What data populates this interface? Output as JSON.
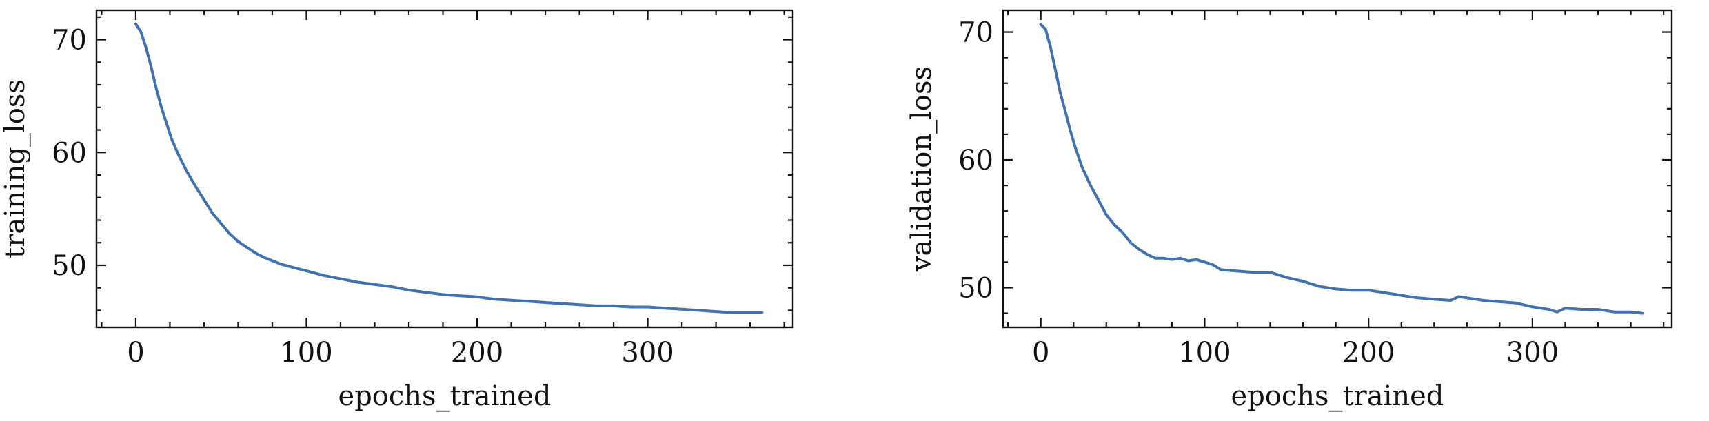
{
  "chart_data": [
    {
      "type": "line",
      "xlabel": "epochs_trained",
      "ylabel": "training_loss",
      "xlim": [
        -23,
        385
      ],
      "ylim": [
        44.5,
        72.6
      ],
      "xticks": [
        0,
        100,
        200,
        300
      ],
      "yticks": [
        50,
        60,
        70
      ],
      "xminor": 20,
      "yminor": 2,
      "grid": false,
      "series": [
        {
          "color": "#3f72af",
          "x": [
            0,
            3,
            6,
            9,
            12,
            15,
            18,
            21,
            25,
            30,
            35,
            40,
            45,
            50,
            55,
            60,
            65,
            70,
            75,
            80,
            85,
            90,
            95,
            100,
            110,
            120,
            130,
            140,
            150,
            160,
            170,
            180,
            190,
            200,
            210,
            220,
            230,
            240,
            250,
            260,
            270,
            280,
            290,
            300,
            310,
            320,
            330,
            340,
            350,
            360,
            367
          ],
          "y": [
            71.4,
            70.7,
            69.3,
            67.6,
            65.7,
            64.0,
            62.6,
            61.2,
            59.8,
            58.3,
            57.0,
            55.8,
            54.6,
            53.7,
            52.8,
            52.1,
            51.6,
            51.1,
            50.7,
            50.4,
            50.1,
            49.9,
            49.7,
            49.5,
            49.1,
            48.8,
            48.5,
            48.3,
            48.1,
            47.8,
            47.6,
            47.4,
            47.3,
            47.2,
            47.0,
            46.9,
            46.8,
            46.7,
            46.6,
            46.5,
            46.4,
            46.4,
            46.3,
            46.3,
            46.2,
            46.1,
            46.0,
            45.9,
            45.8,
            45.8,
            45.8
          ]
        }
      ]
    },
    {
      "type": "line",
      "xlabel": "epochs_trained",
      "ylabel": "validation_loss",
      "xlim": [
        -23,
        385
      ],
      "ylim": [
        46.9,
        71.7
      ],
      "xticks": [
        0,
        100,
        200,
        300
      ],
      "yticks": [
        50,
        60,
        70
      ],
      "xminor": 20,
      "yminor": 2,
      "grid": false,
      "series": [
        {
          "color": "#3f72af",
          "x": [
            0,
            3,
            6,
            9,
            12,
            15,
            18,
            21,
            25,
            30,
            35,
            40,
            45,
            50,
            55,
            60,
            65,
            70,
            75,
            80,
            85,
            90,
            95,
            100,
            105,
            110,
            120,
            130,
            140,
            150,
            160,
            170,
            180,
            190,
            200,
            210,
            220,
            230,
            240,
            250,
            255,
            260,
            270,
            280,
            290,
            300,
            310,
            315,
            320,
            330,
            340,
            350,
            360,
            367
          ],
          "y": [
            70.6,
            70.2,
            68.8,
            67.0,
            65.2,
            63.8,
            62.3,
            61.0,
            59.5,
            58.1,
            56.9,
            55.7,
            54.9,
            54.3,
            53.5,
            53.0,
            52.6,
            52.3,
            52.3,
            52.2,
            52.3,
            52.1,
            52.2,
            52.0,
            51.8,
            51.4,
            51.3,
            51.2,
            51.2,
            50.8,
            50.5,
            50.1,
            49.9,
            49.8,
            49.8,
            49.6,
            49.4,
            49.2,
            49.1,
            49.0,
            49.3,
            49.2,
            49.0,
            48.9,
            48.8,
            48.5,
            48.3,
            48.1,
            48.4,
            48.3,
            48.3,
            48.1,
            48.1,
            48.0
          ]
        }
      ]
    }
  ]
}
